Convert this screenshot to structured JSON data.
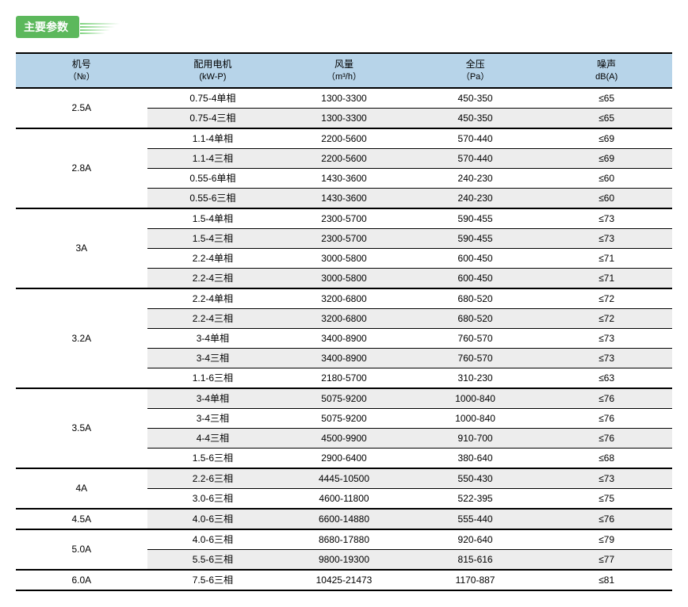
{
  "badge": {
    "label": "主要参数"
  },
  "columns": [
    {
      "l1": "机号",
      "l2": "（№）"
    },
    {
      "l1": "配用电机",
      "l2": "(kW-P)"
    },
    {
      "l1": "风量",
      "l2": "（m³/h）"
    },
    {
      "l1": "全压",
      "l2": "（Pa）"
    },
    {
      "l1": "噪声",
      "l2": "dB(A)"
    }
  ],
  "groups": [
    {
      "model": "2.5A",
      "rows": [
        {
          "motor": "0.75-4单相",
          "airflow": "1300-3300",
          "pressure": "450-350",
          "noise": "≤65"
        },
        {
          "motor": "0.75-4三相",
          "airflow": "1300-3300",
          "pressure": "450-350",
          "noise": "≤65"
        }
      ]
    },
    {
      "model": "2.8A",
      "rows": [
        {
          "motor": "1.1-4单相",
          "airflow": "2200-5600",
          "pressure": "570-440",
          "noise": "≤69"
        },
        {
          "motor": "1.1-4三相",
          "airflow": "2200-5600",
          "pressure": "570-440",
          "noise": "≤69"
        },
        {
          "motor": "0.55-6单相",
          "airflow": "1430-3600",
          "pressure": "240-230",
          "noise": "≤60"
        },
        {
          "motor": "0.55-6三相",
          "airflow": "1430-3600",
          "pressure": "240-230",
          "noise": "≤60"
        }
      ]
    },
    {
      "model": "3A",
      "rows": [
        {
          "motor": "1.5-4单相",
          "airflow": "2300-5700",
          "pressure": "590-455",
          "noise": "≤73"
        },
        {
          "motor": "1.5-4三相",
          "airflow": "2300-5700",
          "pressure": "590-455",
          "noise": "≤73"
        },
        {
          "motor": "2.2-4单相",
          "airflow": "3000-5800",
          "pressure": "600-450",
          "noise": "≤71"
        },
        {
          "motor": "2.2-4三相",
          "airflow": "3000-5800",
          "pressure": "600-450",
          "noise": "≤71"
        }
      ]
    },
    {
      "model": "3.2A",
      "rows": [
        {
          "motor": "2.2-4单相",
          "airflow": "3200-6800",
          "pressure": "680-520",
          "noise": "≤72"
        },
        {
          "motor": "2.2-4三相",
          "airflow": "3200-6800",
          "pressure": "680-520",
          "noise": "≤72"
        },
        {
          "motor": "3-4单相",
          "airflow": "3400-8900",
          "pressure": "760-570",
          "noise": "≤73"
        },
        {
          "motor": "3-4三相",
          "airflow": "3400-8900",
          "pressure": "760-570",
          "noise": "≤73"
        },
        {
          "motor": "1.1-6三相",
          "airflow": "2180-5700",
          "pressure": "310-230",
          "noise": "≤63"
        }
      ]
    },
    {
      "model": "3.5A",
      "rows": [
        {
          "motor": "3-4单相",
          "airflow": "5075-9200",
          "pressure": "1000-840",
          "noise": "≤76"
        },
        {
          "motor": "3-4三相",
          "airflow": "5075-9200",
          "pressure": "1000-840",
          "noise": "≤76"
        },
        {
          "motor": "4-4三相",
          "airflow": "4500-9900",
          "pressure": "910-700",
          "noise": "≤76"
        },
        {
          "motor": "1.5-6三相",
          "airflow": "2900-6400",
          "pressure": "380-640",
          "noise": "≤68"
        }
      ]
    },
    {
      "model": "4A",
      "rows": [
        {
          "motor": "2.2-6三相",
          "airflow": "4445-10500",
          "pressure": "550-430",
          "noise": "≤73"
        },
        {
          "motor": "3.0-6三相",
          "airflow": "4600-11800",
          "pressure": "522-395",
          "noise": "≤75"
        }
      ]
    },
    {
      "model": "4.5A",
      "rows": [
        {
          "motor": "4.0-6三相",
          "airflow": "6600-14880",
          "pressure": "555-440",
          "noise": "≤76"
        }
      ]
    },
    {
      "model": "5.0A",
      "rows": [
        {
          "motor": "4.0-6三相",
          "airflow": "8680-17880",
          "pressure": "920-640",
          "noise": "≤79"
        },
        {
          "motor": "5.5-6三相",
          "airflow": "9800-19300",
          "pressure": "815-616",
          "noise": "≤77"
        }
      ]
    },
    {
      "model": "6.0A",
      "rows": [
        {
          "motor": "7.5-6三相",
          "airflow": "10425-21473",
          "pressure": "1170-887",
          "noise": "≤81"
        }
      ]
    }
  ],
  "style": {
    "header_bg": "#b7d4e9",
    "shade_bg": "#ededed",
    "col_widths_pct": [
      20,
      20,
      20,
      20,
      20
    ]
  }
}
